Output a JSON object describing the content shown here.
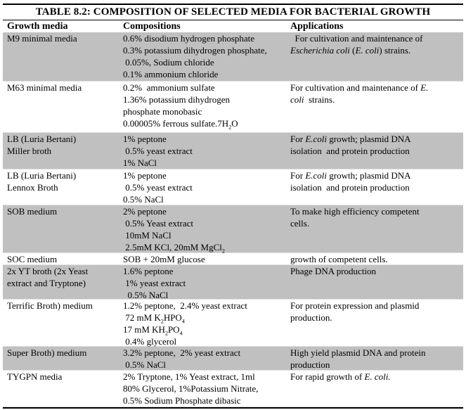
{
  "title": "TABLE 8.2: COMPOSITION OF SELECTED MEDIA FOR BACTERIAL GROWTH",
  "headers": [
    "Growth media",
    "Compositions",
    "Applications"
  ],
  "rows": [
    {
      "media": [
        [
          {
            "t": "M9 minimal media"
          }
        ]
      ],
      "comp": [
        [
          {
            "t": "0.6% disodium hydrogen phosphate"
          }
        ],
        [
          {
            "t": "0.3% potassium dihydrogen phosphate,"
          }
        ],
        [
          {
            "t": " 0.05%, Sodium chloride"
          }
        ],
        [
          {
            "t": "0.1% ammonium chloride"
          }
        ]
      ],
      "app": [
        [
          {
            "t": "  For cultivation and maintenance of"
          }
        ],
        [
          {
            "t": "Escherichia coli",
            "i": true
          },
          {
            "t": " ("
          },
          {
            "t": "E. coli",
            "i": true
          },
          {
            "t": ") strains."
          }
        ]
      ]
    },
    {
      "media": [
        [
          {
            "t": "M63 minimal media"
          }
        ]
      ],
      "comp": [
        [
          {
            "t": "0.2%  ammonium sulfate"
          }
        ],
        [
          {
            "t": "1.36% potassium dihydrogen"
          }
        ],
        [
          {
            "t": "phosphate monobasic"
          }
        ],
        [
          {
            "t": "0.00005% ferrous sulfate.7H"
          },
          {
            "t": "2",
            "sub": true
          },
          {
            "t": "O"
          }
        ]
      ],
      "app": [
        [
          {
            "t": "For cultivation and maintenance of "
          },
          {
            "t": "E.",
            "i": true
          }
        ],
        [
          {
            "t": "coli",
            "i": true
          },
          {
            "t": "  strains."
          }
        ]
      ]
    },
    {
      "media": [
        [
          {
            "t": "LB (Luria Bertani)"
          }
        ],
        [
          {
            "t": "Miller broth"
          }
        ]
      ],
      "comp": [
        [
          {
            "t": "1% peptone"
          }
        ],
        [
          {
            "t": " 0.5% yeast extract"
          }
        ],
        [
          {
            "t": "1% NaCl"
          }
        ]
      ],
      "app": [
        [
          {
            "t": "For "
          },
          {
            "t": "E.coli",
            "i": true
          },
          {
            "t": " growth; plasmid DNA"
          }
        ],
        [
          {
            "t": "isolation  and protein production"
          }
        ]
      ]
    },
    {
      "media": [
        [
          {
            "t": "LB (Luria Bertani)"
          }
        ],
        [
          {
            "t": "Lennox Broth"
          }
        ]
      ],
      "comp": [
        [
          {
            "t": "1% peptone"
          }
        ],
        [
          {
            "t": " 0.5% yeast extract"
          }
        ],
        [
          {
            "t": "0.5% NaCl"
          }
        ]
      ],
      "app": [
        [
          {
            "t": "For "
          },
          {
            "t": "E.coli",
            "i": true
          },
          {
            "t": " growth; plasmid DNA"
          }
        ],
        [
          {
            "t": "isolation  and protein production"
          }
        ]
      ]
    },
    {
      "media": [
        [
          {
            "t": "SOB medium"
          }
        ]
      ],
      "comp": [
        [
          {
            "t": "2% peptone"
          }
        ],
        [
          {
            "t": " 0.5% Yeast extract"
          }
        ],
        [
          {
            "t": " 10mM NaCl"
          }
        ],
        [
          {
            "t": " 2.5mM KCl, 20mM MgCl"
          },
          {
            "t": "2",
            "sub": true
          }
        ]
      ],
      "app": [
        [
          {
            "t": "To make high efficiency competent"
          }
        ],
        [
          {
            "t": "cells."
          }
        ]
      ]
    },
    {
      "media": [
        [
          {
            "t": "SOC medium"
          }
        ]
      ],
      "comp": [
        [
          {
            "t": "SOB + 20mM glucose"
          }
        ]
      ],
      "app": [
        [
          {
            "t": "growth of competent cells."
          }
        ]
      ]
    },
    {
      "media": [
        [
          {
            "t": "2x YT broth (2x Yeast"
          }
        ],
        [
          {
            "t": "extract and Tryptone)"
          }
        ]
      ],
      "comp": [
        [
          {
            "t": "1.6% peptone"
          }
        ],
        [
          {
            "t": " 1% yeast extract"
          }
        ],
        [
          {
            "t": "  0.5% NaCl"
          }
        ]
      ],
      "app": [
        [
          {
            "t": "Phage DNA production"
          }
        ]
      ]
    },
    {
      "media": [
        [
          {
            "t": "Terrific Broth) medium"
          }
        ]
      ],
      "comp": [
        [
          {
            "t": "1.2% peptone,  2.4% yeast extract"
          }
        ],
        [
          {
            "t": " 72 mM K"
          },
          {
            "t": "2",
            "sub": true
          },
          {
            "t": "HPO"
          },
          {
            "t": "4",
            "sub": true
          }
        ],
        [
          {
            "t": "17 mM KH"
          },
          {
            "t": "2",
            "sub": true
          },
          {
            "t": "PO"
          },
          {
            "t": "4",
            "sub": true
          }
        ],
        [
          {
            "t": " 0.4% glycerol"
          }
        ]
      ],
      "app": [
        [
          {
            "t": " For protein expression and plasmid",
            "j": true
          }
        ],
        [
          {
            "t": "production."
          }
        ]
      ]
    },
    {
      "media": [
        [
          {
            "t": "Super Broth) medium"
          }
        ]
      ],
      "comp": [
        [
          {
            "t": "3.2% peptone,  2% yeast extract"
          }
        ],
        [
          {
            "t": " 0.5% NaCl"
          }
        ]
      ],
      "app": [
        [
          {
            "t": "High yield plasmid DNA and protein",
            "j": true
          }
        ],
        [
          {
            "t": "production"
          }
        ]
      ]
    },
    {
      "media": [
        [
          {
            "t": "TYGPN media"
          }
        ]
      ],
      "comp": [
        [
          {
            "t": "2% Tryptone, 1% Yeast extract, 1ml"
          }
        ],
        [
          {
            "t": "80% Glycerol, 1%Potassium Nitrate,"
          }
        ],
        [
          {
            "t": "0.5% Sodium Phosphate dibasic"
          }
        ]
      ],
      "app": [
        [
          {
            "t": "For rapid growth of "
          },
          {
            "t": "E. coli.",
            "i": true
          }
        ]
      ]
    }
  ]
}
